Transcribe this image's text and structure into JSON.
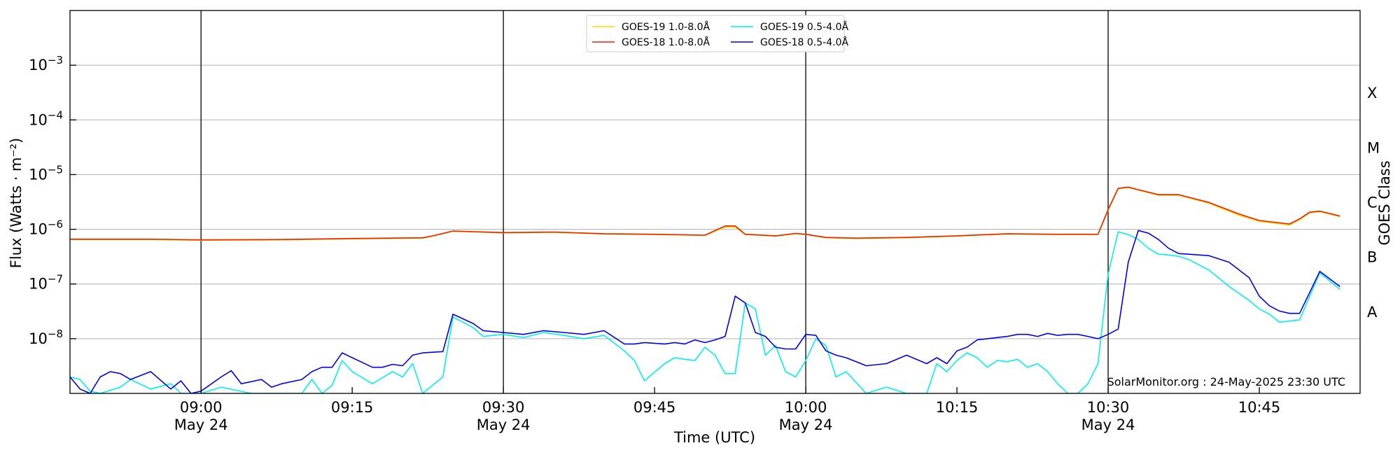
{
  "chart_data": {
    "type": "line",
    "xlabel": "Time (UTC)",
    "ylabel": "Flux (Watts · m⁻²)",
    "ylabel_right": "GOES Class",
    "y_scale": "log",
    "ylim": [
      1e-09,
      0.01
    ],
    "xlim": [
      "08:47",
      "10:55"
    ],
    "grid": "horizontal",
    "legend_position": "top-center",
    "credit": "SolarMonitor.org : 24-May-2025 23:30 UTC",
    "x_ticks": [
      {
        "time": "09:00",
        "label": "09:00",
        "date": "May 24"
      },
      {
        "time": "09:15",
        "label": "09:15",
        "date": ""
      },
      {
        "time": "09:30",
        "label": "09:30",
        "date": "May 24"
      },
      {
        "time": "09:45",
        "label": "09:45",
        "date": ""
      },
      {
        "time": "10:00",
        "label": "10:00",
        "date": "May 24"
      },
      {
        "time": "10:15",
        "label": "10:15",
        "date": ""
      },
      {
        "time": "10:30",
        "label": "10:30",
        "date": "May 24"
      },
      {
        "time": "10:45",
        "label": "10:45",
        "date": ""
      }
    ],
    "vertical_markers": [
      "09:00",
      "09:30",
      "10:00",
      "10:30"
    ],
    "y_ticks": [
      {
        "value": 0.001,
        "label_base": "10",
        "label_exp": "−3"
      },
      {
        "value": 0.0001,
        "label_base": "10",
        "label_exp": "−4"
      },
      {
        "value": 1e-05,
        "label_base": "10",
        "label_exp": "−5"
      },
      {
        "value": 1e-06,
        "label_base": "10",
        "label_exp": "−6"
      },
      {
        "value": 1e-07,
        "label_base": "10",
        "label_exp": "−7"
      },
      {
        "value": 1e-08,
        "label_base": "10",
        "label_exp": "−8"
      }
    ],
    "goes_classes": [
      {
        "label": "X",
        "value": 0.000316
      },
      {
        "label": "M",
        "value": 3.16e-05
      },
      {
        "label": "C",
        "value": 3.16e-06
      },
      {
        "label": "B",
        "value": 3.16e-07
      },
      {
        "label": "A",
        "value": 3.16e-08
      }
    ],
    "series": [
      {
        "name": "GOES-19 1.0-8.0Å",
        "color": "#ffd700",
        "x": [
          "08:47",
          "08:55",
          "09:00",
          "09:08",
          "09:15",
          "09:22",
          "09:23",
          "09:25",
          "09:30",
          "09:35",
          "09:40",
          "09:45",
          "09:50",
          "09:52",
          "09:53",
          "09:54",
          "09:57",
          "09:59",
          "10:00",
          "10:02",
          "10:05",
          "10:10",
          "10:15",
          "10:20",
          "10:25",
          "10:29",
          "10:30",
          "10:31",
          "10:32",
          "10:33",
          "10:35",
          "10:37",
          "10:40",
          "10:43",
          "10:45",
          "10:48",
          "10:49",
          "10:50",
          "10:51",
          "10:53"
        ],
        "values": [
          6.5e-07,
          6.5e-07,
          6.3e-07,
          6.4e-07,
          6.7e-07,
          6.9e-07,
          7.5e-07,
          9.2e-07,
          8.6e-07,
          8.8e-07,
          8.2e-07,
          8e-07,
          7.7e-07,
          1.1e-06,
          1.1e-06,
          8e-07,
          7.5e-07,
          8.3e-07,
          8e-07,
          7e-07,
          6.8e-07,
          7e-07,
          7.5e-07,
          8.2e-07,
          8e-07,
          8e-07,
          2.2e-06,
          5.5e-06,
          5.8e-06,
          5.2e-06,
          4.2e-06,
          4.2e-06,
          3e-06,
          1.8e-06,
          1.4e-06,
          1.2e-06,
          1.5e-06,
          2e-06,
          2.1e-06,
          1.7e-06
        ]
      },
      {
        "name": "GOES-18 1.0-8.0Å",
        "color": "#ee2200",
        "x": [
          "08:47",
          "08:55",
          "09:00",
          "09:08",
          "09:15",
          "09:22",
          "09:23",
          "09:25",
          "09:30",
          "09:35",
          "09:40",
          "09:45",
          "09:50",
          "09:52",
          "09:53",
          "09:54",
          "09:57",
          "09:59",
          "10:00",
          "10:02",
          "10:05",
          "10:10",
          "10:15",
          "10:20",
          "10:25",
          "10:29",
          "10:30",
          "10:31",
          "10:32",
          "10:33",
          "10:35",
          "10:37",
          "10:40",
          "10:43",
          "10:45",
          "10:48",
          "10:49",
          "10:50",
          "10:51",
          "10:53"
        ],
        "values": [
          6.6e-07,
          6.6e-07,
          6.4e-07,
          6.5e-07,
          6.8e-07,
          7e-07,
          7.6e-07,
          9.3e-07,
          8.7e-07,
          8.9e-07,
          8.3e-07,
          8.1e-07,
          7.8e-07,
          1.15e-06,
          1.15e-06,
          8.1e-07,
          7.6e-07,
          8.4e-07,
          8.1e-07,
          7.1e-07,
          6.9e-07,
          7.1e-07,
          7.6e-07,
          8.3e-07,
          8.1e-07,
          8.1e-07,
          2.3e-06,
          5.6e-06,
          5.9e-06,
          5.3e-06,
          4.3e-06,
          4.3e-06,
          3.1e-06,
          1.9e-06,
          1.45e-06,
          1.25e-06,
          1.55e-06,
          2.05e-06,
          2.15e-06,
          1.75e-06
        ]
      },
      {
        "name": "GOES-19 0.5-4.0Å",
        "color": "#00f0f0",
        "x": [
          "08:47",
          "08:48",
          "08:49",
          "08:50",
          "08:52",
          "08:53",
          "08:55",
          "08:57",
          "08:58",
          "09:00",
          "09:02",
          "09:05",
          "09:08",
          "09:10",
          "09:11",
          "09:12",
          "09:13",
          "09:14",
          "09:15",
          "09:17",
          "09:19",
          "09:20",
          "09:21",
          "09:22",
          "09:24",
          "09:25",
          "09:27",
          "09:28",
          "09:30",
          "09:32",
          "09:34",
          "09:36",
          "09:38",
          "09:40",
          "09:42",
          "09:43",
          "09:44",
          "09:46",
          "09:47",
          "09:48",
          "09:49",
          "09:50",
          "09:51",
          "09:52",
          "09:53",
          "09:54",
          "09:55",
          "09:56",
          "09:57",
          "09:58",
          "09:59",
          "10:00",
          "10:01",
          "10:02",
          "10:03",
          "10:04",
          "10:06",
          "10:08",
          "10:10",
          "10:12",
          "10:13",
          "10:14",
          "10:15",
          "10:16",
          "10:17",
          "10:18",
          "10:19",
          "10:20",
          "10:21",
          "10:22",
          "10:23",
          "10:24",
          "10:25",
          "10:26",
          "10:27",
          "10:28",
          "10:29",
          "10:30",
          "10:31",
          "10:32",
          "10:33",
          "10:34",
          "10:35",
          "10:36",
          "10:37",
          "10:38",
          "10:40",
          "10:42",
          "10:44",
          "10:45",
          "10:46",
          "10:47",
          "10:48",
          "10:49",
          "10:50",
          "10:51",
          "10:53"
        ],
        "values": [
          2e-09,
          1.8e-09,
          1.1e-09,
          1e-09,
          1.3e-09,
          1.8e-09,
          1.2e-09,
          1.5e-09,
          1e-09,
          1e-09,
          1.3e-09,
          1e-09,
          1e-09,
          1e-09,
          1.8e-09,
          1e-09,
          1.4e-09,
          4e-09,
          2.5e-09,
          1.5e-09,
          2.5e-09,
          2e-09,
          3.5e-09,
          1e-09,
          2e-09,
          2.5e-08,
          1.6e-08,
          1.1e-08,
          1.2e-08,
          1.05e-08,
          1.3e-08,
          1.15e-08,
          1e-08,
          1.15e-08,
          6e-09,
          4e-09,
          1.7e-09,
          3.5e-09,
          4.5e-09,
          4.2e-09,
          4e-09,
          7e-09,
          5e-09,
          2.3e-09,
          2.3e-09,
          4.5e-08,
          3.5e-08,
          5e-09,
          7.5e-09,
          2.5e-09,
          2e-09,
          4e-09,
          1e-08,
          7.5e-09,
          2e-09,
          2.5e-09,
          1e-09,
          1.3e-09,
          1e-09,
          1e-09,
          3.5e-09,
          2.5e-09,
          4e-09,
          5.5e-09,
          4.5e-09,
          3e-09,
          4e-09,
          3.8e-09,
          4.2e-09,
          3e-09,
          3.5e-09,
          2.5e-09,
          1.5e-09,
          1e-09,
          1e-09,
          1.5e-09,
          3.5e-09,
          1.5e-07,
          9e-07,
          8e-07,
          6.5e-07,
          4.5e-07,
          3.5e-07,
          3.4e-07,
          3.2e-07,
          2.8e-07,
          1.8e-07,
          9e-08,
          5e-08,
          3.5e-08,
          2.8e-08,
          2e-08,
          2.1e-08,
          2.2e-08,
          6e-08,
          1.6e-07,
          8e-08
        ]
      },
      {
        "name": "GOES-18 0.5-4.0Å",
        "color": "#0000ee",
        "x": [
          "08:47",
          "08:48",
          "08:49",
          "08:50",
          "08:51",
          "08:52",
          "08:53",
          "08:55",
          "08:57",
          "08:58",
          "08:59",
          "09:00",
          "09:02",
          "09:03",
          "09:04",
          "09:06",
          "09:07",
          "09:08",
          "09:10",
          "09:11",
          "09:12",
          "09:13",
          "09:14",
          "09:15",
          "09:17",
          "09:18",
          "09:19",
          "09:20",
          "09:21",
          "09:22",
          "09:24",
          "09:25",
          "09:27",
          "09:28",
          "09:30",
          "09:32",
          "09:34",
          "09:36",
          "09:38",
          "09:40",
          "09:42",
          "09:43",
          "09:44",
          "09:46",
          "09:47",
          "09:48",
          "09:49",
          "09:50",
          "09:51",
          "09:52",
          "09:53",
          "09:54",
          "09:55",
          "09:56",
          "09:57",
          "09:58",
          "09:59",
          "10:00",
          "10:01",
          "10:02",
          "10:03",
          "10:04",
          "10:06",
          "10:08",
          "10:10",
          "10:12",
          "10:13",
          "10:14",
          "10:15",
          "10:16",
          "10:17",
          "10:18",
          "10:19",
          "10:20",
          "10:21",
          "10:22",
          "10:23",
          "10:24",
          "10:25",
          "10:26",
          "10:27",
          "10:28",
          "10:29",
          "10:30",
          "10:31",
          "10:32",
          "10:33",
          "10:34",
          "10:35",
          "10:36",
          "10:37",
          "10:38",
          "10:40",
          "10:42",
          "10:44",
          "10:45",
          "10:46",
          "10:47",
          "10:48",
          "10:49",
          "10:50",
          "10:51",
          "10:53"
        ],
        "values": [
          2e-09,
          1.2e-09,
          1e-09,
          2e-09,
          2.5e-09,
          2.3e-09,
          1.8e-09,
          2.5e-09,
          1.2e-09,
          1.7e-09,
          1e-09,
          1.1e-09,
          2e-09,
          2.6e-09,
          1.5e-09,
          1.8e-09,
          1.3e-09,
          1.5e-09,
          1.8e-09,
          2.5e-09,
          3e-09,
          3e-09,
          5.5e-09,
          4.5e-09,
          3e-09,
          3e-09,
          3.4e-09,
          3.2e-09,
          5e-09,
          5.5e-09,
          5.8e-09,
          2.8e-08,
          1.9e-08,
          1.4e-08,
          1.3e-08,
          1.2e-08,
          1.4e-08,
          1.3e-08,
          1.2e-08,
          1.4e-08,
          8e-09,
          8e-09,
          8.5e-09,
          8e-09,
          8.5e-09,
          8e-09,
          9.5e-09,
          8.5e-09,
          9.5e-09,
          1.1e-08,
          6e-08,
          4.5e-08,
          1.3e-08,
          1.1e-08,
          7e-09,
          6.5e-09,
          6.5e-09,
          1.2e-08,
          1.15e-08,
          6e-09,
          5e-09,
          4.5e-09,
          3.2e-09,
          3.5e-09,
          5e-09,
          3.5e-09,
          4.5e-09,
          3.5e-09,
          6e-09,
          7e-09,
          9.5e-09,
          1e-08,
          1.05e-08,
          1.1e-08,
          1.2e-08,
          1.2e-08,
          1.1e-08,
          1.25e-08,
          1.15e-08,
          1.2e-08,
          1.2e-08,
          1.1e-08,
          1e-08,
          1.2e-08,
          1.5e-08,
          2.5e-07,
          9.5e-07,
          8.5e-07,
          6.5e-07,
          4.5e-07,
          3.6e-07,
          3.5e-07,
          3.3e-07,
          2.5e-07,
          1.3e-07,
          6e-08,
          4e-08,
          3.2e-08,
          2.9e-08,
          2.9e-08,
          7e-08,
          1.7e-07,
          9e-08
        ]
      }
    ]
  }
}
